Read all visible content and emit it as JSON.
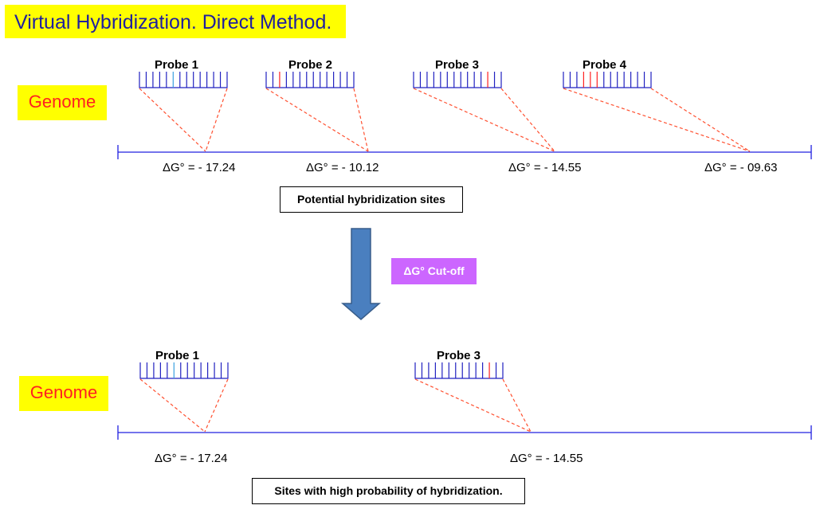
{
  "title": "Virtual Hybridization. Direct Method.",
  "genome_label": "Genome",
  "cutoff_label": "ΔG° Cut-off",
  "top_panel": {
    "probes": [
      {
        "label": "Probe 1",
        "dg": "ΔG° = - 17.24"
      },
      {
        "label": "Probe 2",
        "dg": "ΔG° = - 10.12"
      },
      {
        "label": "Probe 3",
        "dg": "ΔG° = - 14.55"
      },
      {
        "label": "Probe 4",
        "dg": "ΔG° = - 09.63"
      }
    ],
    "caption": "Potential hybridization sites"
  },
  "bottom_panel": {
    "probes": [
      {
        "label": "Probe 1",
        "dg": "ΔG° = - 17.24"
      },
      {
        "label": "Probe 3",
        "dg": "ΔG° = - 14.55"
      }
    ],
    "caption": "Sites with high probability of hybridization."
  },
  "colors": {
    "title_bg": "#ffff00",
    "title_text": "#1f1fa0",
    "genome_text": "#ff2020",
    "genome_line": "#2020e0",
    "probe_comb": "#2020c0",
    "mismatch": "#ff2020",
    "connector": "#ff5030",
    "arrow": "#4a7fbf",
    "cutoff_bg": "#cc66ff"
  }
}
